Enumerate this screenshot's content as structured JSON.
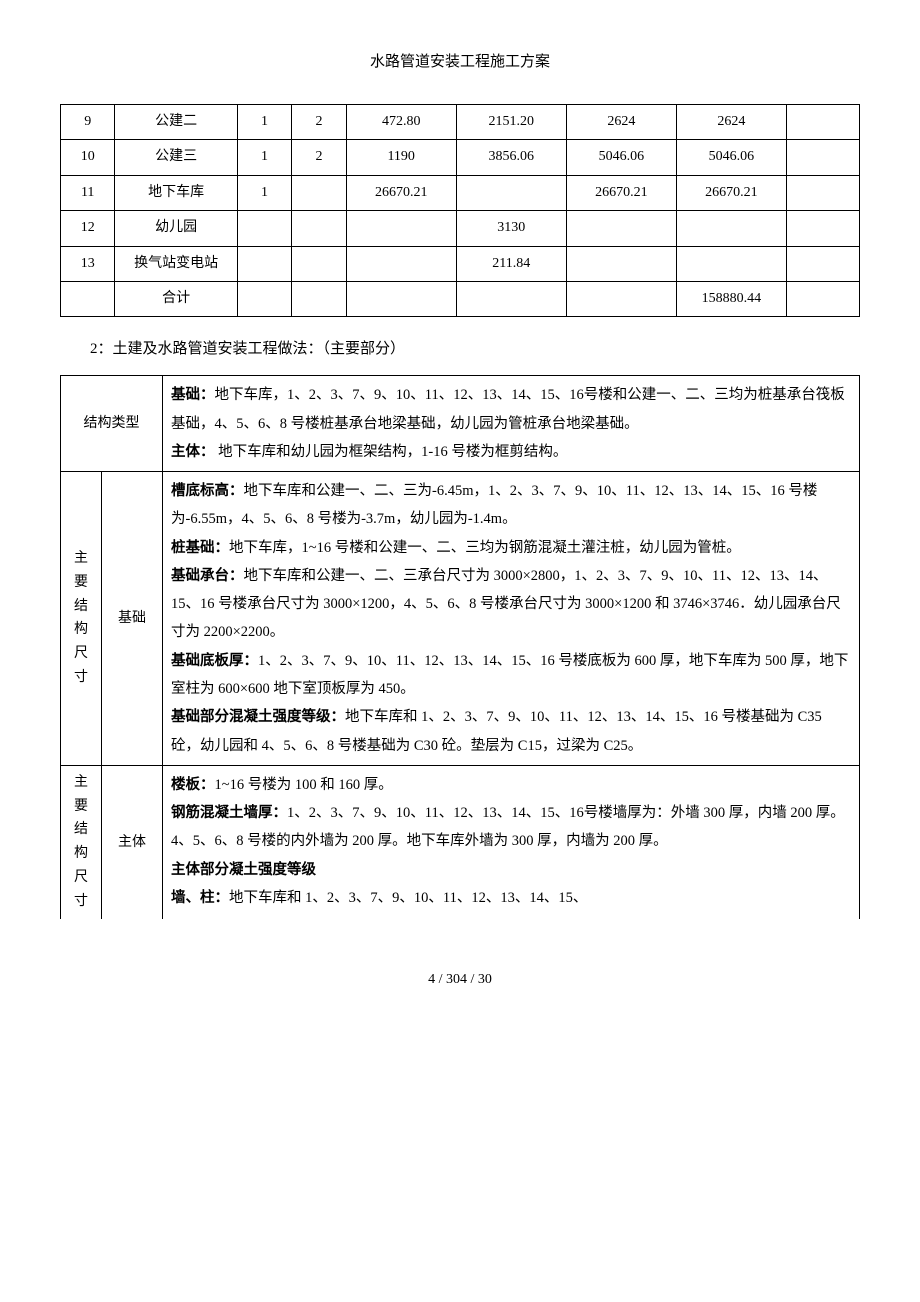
{
  "header": {
    "title": "水路管道安装工程施工方案"
  },
  "table1": {
    "rows": [
      [
        "9",
        "公建二",
        "1",
        "2",
        "472.80",
        "2151.20",
        "2624",
        "2624",
        ""
      ],
      [
        "10",
        "公建三",
        "1",
        "2",
        "1190",
        "3856.06",
        "5046.06",
        "5046.06",
        ""
      ],
      [
        "11",
        "地下车库",
        "1",
        "",
        "26670.21",
        "",
        "26670.21",
        "26670.21",
        ""
      ],
      [
        "12",
        "幼儿园",
        "",
        "",
        "",
        "3130",
        "",
        "",
        ""
      ],
      [
        "13",
        "换气站变电站",
        "",
        "",
        "",
        "211.84",
        "",
        "",
        ""
      ],
      [
        "",
        "合计",
        "",
        "",
        "",
        "",
        "",
        "158880.44",
        ""
      ]
    ]
  },
  "section2_title": "2：土建及水路管道安装工程做法：（主要部分）",
  "table2": {
    "row1_label": "结构类型",
    "row1_bold1": "基础：",
    "row1_text1": "地下车库，1、2、3、7、9、10、11、12、13、14、15、16号楼和公建一、二、三均为桩基承台筏板基础，4、5、6、8 号楼桩基承台地梁基础，幼儿园为管桩承台地梁基础。",
    "row1_bold2": "主体：",
    "row1_text2": " 地下车库和幼儿园为框架结构，1-16 号楼为框剪结构。",
    "vlabel1": "主要结构尺寸",
    "row2_label": "基础",
    "r2_b1": "槽底标高：",
    "r2_t1": "地下车库和公建一、二、三为-6.45m，1、2、3、7、9、10、11、12、13、14、15、16 号楼为-6.55m，4、5、6、8 号楼为-3.7m，幼儿园为-1.4m。",
    "r2_b2": "桩基础：",
    "r2_t2": "地下车库，1~16 号楼和公建一、二、三均为钢筋混凝土灌注桩，幼儿园为管桩。",
    "r2_b3": "基础承台：",
    "r2_t3": "地下车库和公建一、二、三承台尺寸为 3000×2800，1、2、3、7、9、10、11、12、13、14、15、16 号楼承台尺寸为 3000×1200，4、5、6、8 号楼承台尺寸为 3000×1200 和 3746×3746．幼儿园承台尺寸为 2200×2200。",
    "r2_b4": "基础底板厚：",
    "r2_t4": "1、2、3、7、9、10、11、12、13、14、15、16 号楼底板为 600 厚，地下车库为 500 厚，地下室柱为 600×600 地下室顶板厚为 450。",
    "r2_b5": "基础部分混凝土强度等级：",
    "r2_t5": "地下车库和 1、2、3、7、9、10、11、12、13、14、15、16 号楼基础为 C35 砼，幼儿园和 4、5、6、8 号楼基础为 C30 砼。垫层为 C15，过梁为 C25。",
    "vlabel2": "主要结构尺寸",
    "row3_label": "主体",
    "r3_b1": "楼板：",
    "r3_t1": "1~16 号楼为 100 和 160 厚。",
    "r3_b2": "钢筋混凝土墙厚：",
    "r3_t2": "1、2、3、7、9、10、11、12、13、14、15、16号楼墙厚为：外墙 300 厚，内墙 200 厚。4、5、6、8 号楼的内外墙为 200 厚。地下车库外墙为 300 厚，内墙为 200 厚。",
    "r3_b3": "主体部分凝土强度等级",
    "r3_b4": "墙、柱：",
    "r3_t4": "地下车库和 1、2、3、7、9、10、11、12、13、14、15、"
  },
  "footer": {
    "text": "4 / 304 / 30"
  }
}
